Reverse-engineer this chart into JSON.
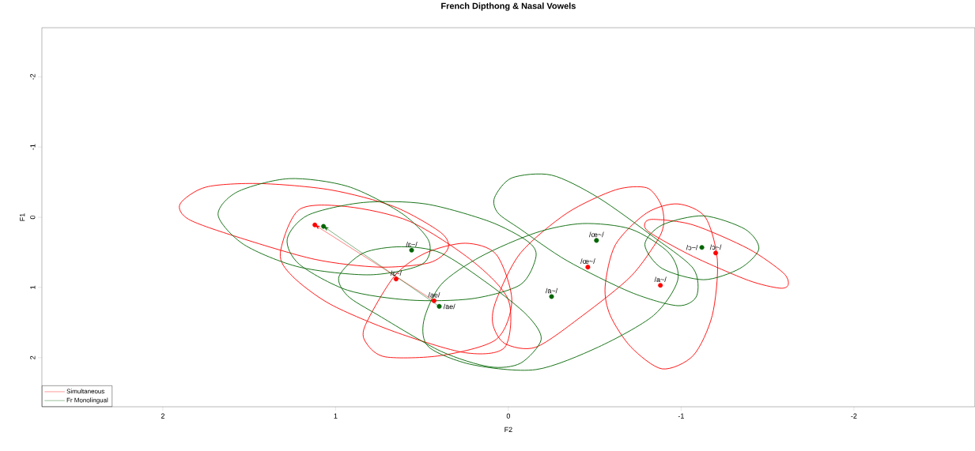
{
  "chart_data": {
    "type": "scatter",
    "title": "French Dipthong & Nasal Vowels",
    "xlabel": "F2",
    "ylabel": "F1",
    "xlim": [
      2.7,
      -2.7
    ],
    "ylim": [
      2.7,
      -2.7
    ],
    "xticks": [
      2,
      1,
      0,
      -1,
      -2
    ],
    "yticks": [
      -2,
      -1,
      0,
      1,
      2
    ],
    "grid": false,
    "legend": "bottom left",
    "marker": "circle",
    "series": [
      {
        "name": "Simultaneous",
        "color": "#ff0000",
        "x": [
          1.12,
          0.65,
          0.43,
          -0.46,
          -0.88,
          -1.2
        ],
        "values": [
          0.11,
          0.88,
          1.19,
          0.71,
          0.97,
          0.51
        ]
      },
      {
        "name": "Fr Monolingual",
        "color": "#006400",
        "x": [
          1.07,
          0.56,
          0.4,
          -0.25,
          -0.51,
          -1.12
        ],
        "values": [
          0.13,
          0.47,
          1.27,
          1.13,
          0.33,
          0.43
        ]
      }
    ],
    "annotations": [
      {
        "text": "/ɛ~/",
        "x": 0.65,
        "y": 0.88
      },
      {
        "text": "/ae/",
        "x": 0.43,
        "y": 1.19
      },
      {
        "text": "/œ~/",
        "x": -0.46,
        "y": 0.71
      },
      {
        "text": "/a~/",
        "x": -0.88,
        "y": 0.97
      },
      {
        "text": "/ɔ~/",
        "x": -1.2,
        "y": 0.51
      },
      {
        "text": "/ɛ~/",
        "x": 0.56,
        "y": 0.47
      },
      {
        "text": "/ae/",
        "x": 0.4,
        "y": 1.27
      },
      {
        "text": "/a~/",
        "x": -0.25,
        "y": 1.13
      },
      {
        "text": "/œ~/",
        "x": -0.51,
        "y": 0.33
      },
      {
        "text": "/ɔ~/",
        "x": -1.12,
        "y": 0.43
      }
    ]
  }
}
